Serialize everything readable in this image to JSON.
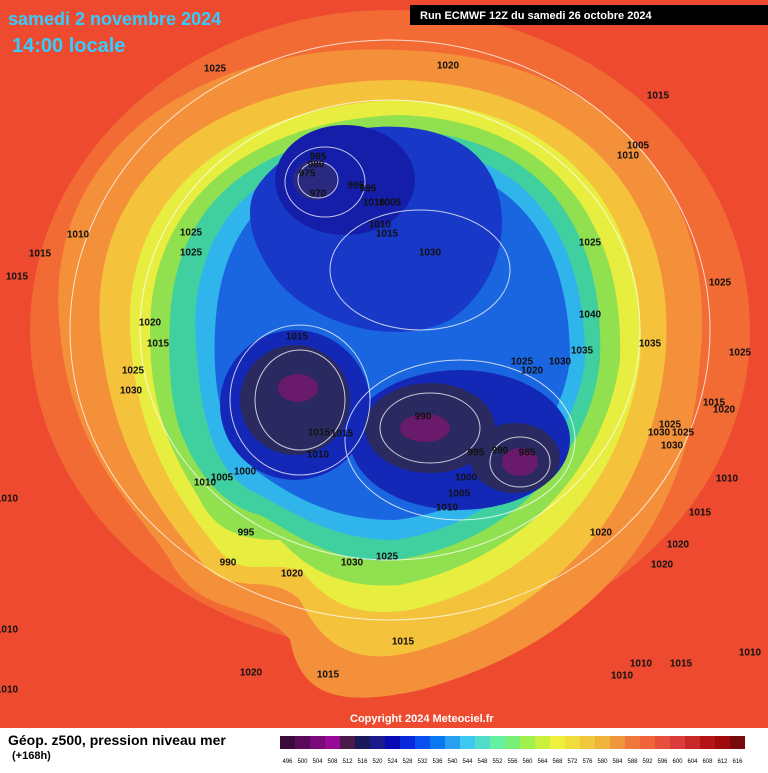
{
  "header": {
    "date": "samedi 2 novembre 2024",
    "time": "14:00 locale",
    "run": "Run ECMWF 12Z du samedi 26 octobre 2024"
  },
  "footer": {
    "title": "Géop. z500, pression niveau mer",
    "lead": "(+168h)",
    "copyright": "Copyright 2024 Meteociel.fr"
  },
  "scale": {
    "ticks": [
      496,
      500,
      504,
      508,
      512,
      516,
      520,
      524,
      528,
      532,
      536,
      540,
      544,
      548,
      552,
      556,
      560,
      564,
      568,
      572,
      576,
      580,
      584,
      588,
      592,
      596,
      600,
      604,
      608,
      612,
      616
    ],
    "colors": [
      "#3a0a3a",
      "#5a0a5a",
      "#7a0a7a",
      "#960a96",
      "#4a1a4a",
      "#1a1a5a",
      "#1a1a8a",
      "#0a0ab4",
      "#0a28dc",
      "#0a50f0",
      "#0a78f0",
      "#28a0f0",
      "#3cc8f0",
      "#50dcc8",
      "#64f0a0",
      "#78f078",
      "#a0f050",
      "#c8f03c",
      "#f0f03c",
      "#f0dc3c",
      "#f0c83c",
      "#f0b43c",
      "#f0963c",
      "#f0783c",
      "#f0643c",
      "#e6503c",
      "#dc3c3c",
      "#c82828",
      "#b41414",
      "#a00a0a",
      "#780a0a"
    ]
  },
  "map": {
    "isobar_labels": [
      1025,
      1020,
      1015,
      1005,
      1010,
      985,
      980,
      975,
      970,
      995,
      995,
      1010,
      1005,
      1010,
      1015,
      1030,
      1025,
      1025,
      1010,
      1015,
      1025,
      1025,
      1015,
      1020,
      1015,
      1040,
      1035,
      1035,
      1025,
      1030,
      1020,
      1025,
      1015,
      1015,
      1020,
      1025,
      1030,
      990,
      1025,
      1030,
      1025,
      1030,
      1015,
      1015,
      1010,
      995,
      990,
      985,
      1000,
      1005,
      1010,
      1010,
      1000,
      1005,
      1010,
      1015,
      1010,
      995,
      1020,
      1020,
      1025,
      1030,
      990,
      1020,
      1020,
      1015,
      1010,
      1010,
      1015,
      1010,
      1010,
      1020,
      1015,
      1010
    ]
  }
}
